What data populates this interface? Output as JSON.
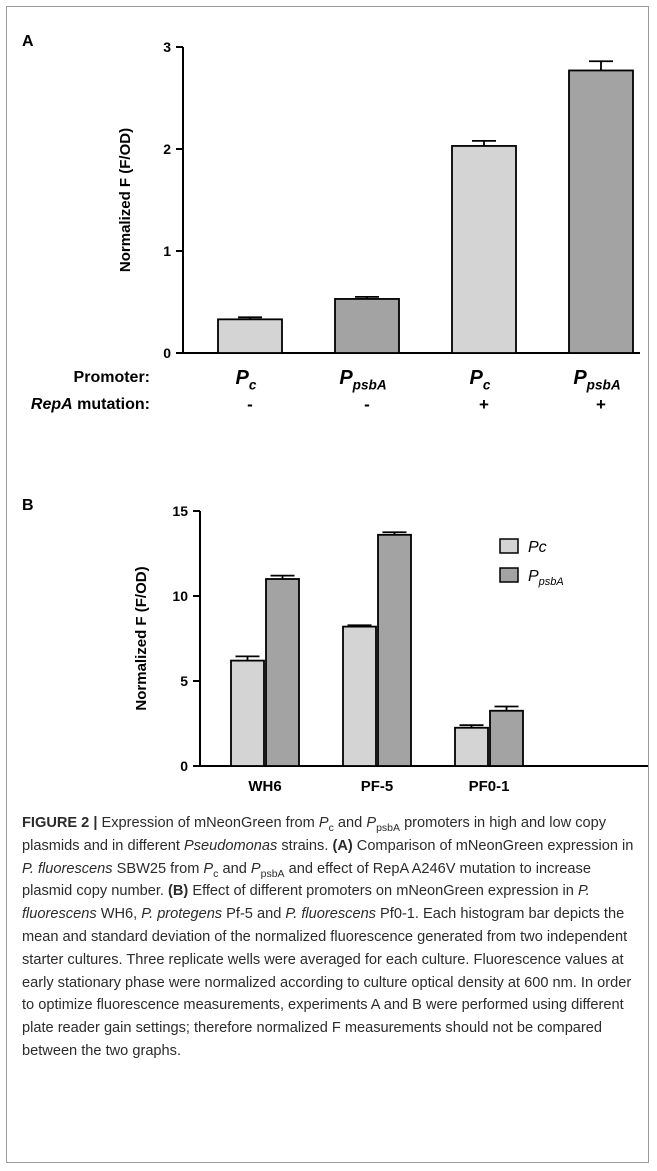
{
  "chart_data": [
    {
      "type": "bar",
      "title": "A",
      "y_label": "Normalized F (F/OD)",
      "row_labels": [
        [
          "Promoter:"
        ],
        [
          "RepA",
          " mutation:"
        ]
      ],
      "categories": [
        [
          "P",
          "c"
        ],
        [
          "P",
          "psbA"
        ],
        [
          "P",
          "c"
        ],
        [
          "P",
          "psbA"
        ]
      ],
      "repa_mutation": [
        "-",
        "-",
        "+",
        "+"
      ],
      "values": [
        0.33,
        0.53,
        2.03,
        2.77
      ],
      "errors": [
        0.02,
        0.02,
        0.05,
        0.09
      ],
      "colors": [
        "#d4d4d4",
        "#a3a3a3",
        "#d4d4d4",
        "#a3a3a3"
      ],
      "ylim": [
        0,
        3
      ],
      "yticks": [
        0,
        1,
        2,
        3
      ]
    },
    {
      "type": "grouped_bar",
      "title": "B",
      "y_label": "Normalized F (F/OD)",
      "categories": [
        "WH6",
        "PF-5",
        "PF0-1"
      ],
      "series": [
        {
          "name": "Pc",
          "color": "#d4d4d4",
          "values": [
            6.2,
            8.2,
            2.25
          ],
          "errors": [
            0.25,
            0.08,
            0.15
          ]
        },
        {
          "name": [
            "P",
            "psbA"
          ],
          "color": "#a3a3a3",
          "values": [
            11.0,
            13.6,
            3.25
          ],
          "errors": [
            0.2,
            0.15,
            0.25
          ]
        }
      ],
      "ylim": [
        0,
        15
      ],
      "yticks": [
        0,
        5,
        10,
        15
      ],
      "legend": "upper right"
    }
  ],
  "caption": [
    "FIGURE 2 |",
    " Expression of mNeonGreen from ",
    "P",
    "c",
    " and ",
    "P",
    "psbA",
    " promoters in high and low copy plasmids and in different ",
    "Pseudomonas",
    " strains. ",
    "(A)",
    " Comparison of mNeonGreen expression in ",
    "P. fluorescens",
    " SBW25 from ",
    "P",
    "c",
    " and ",
    "P",
    "psbA",
    " and effect of RepA A246V mutation to increase plasmid copy number. ",
    "(B)",
    " Effect of different promoters on mNeonGreen expression in ",
    "P. fluorescens",
    " WH6, ",
    "P. protegens",
    " Pf-5 and ",
    "P. fluorescens",
    " Pf0-1. Each histogram bar depicts the mean and standard deviation of the normalized fluorescence generated from two independent starter cultures. Three replicate wells were averaged for each culture. Fluorescence values at early stationary phase were normalized according to culture optical density at 600 nm. In order to optimize fluorescence measurements, experiments A and B were performed using different plate reader gain settings; therefore normalized F measurements should not be compared between the two graphs."
  ]
}
